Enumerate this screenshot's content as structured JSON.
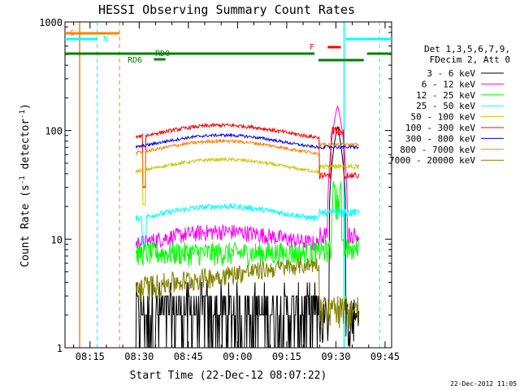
{
  "chart_data": {
    "type": "line",
    "title": "HESSI Observing Summary Count Rates",
    "xlabel": "Start Time (22-Dec-12 08:07:22)",
    "ylabel_main": "Count Rate (s",
    "ylabel_sup1": "-1",
    "ylabel_mid": " detector",
    "ylabel_sup2": "-1",
    "ylabel_end": ")",
    "yscale": "log",
    "ylim": [
      1,
      1000
    ],
    "xlim": [
      "08:07:22",
      "09:47:00"
    ],
    "x_ticks": [
      "08:15",
      "08:30",
      "08:45",
      "09:00",
      "09:15",
      "09:30",
      "09:45"
    ],
    "y_ticks": [
      "1",
      "10",
      "100",
      "1000"
    ],
    "legend_header": [
      "Det 1,3,5,6,7,9,",
      "FDecim 2, Att 0"
    ],
    "legend_position": "right",
    "footer_timestamp": "22-Dec-2012 11:05",
    "flags": {
      "S": "S",
      "N": "N",
      "RD0": "RD0",
      "RD6": "RD6",
      "F": "F"
    },
    "colors": {
      "S": "#ff8000",
      "N": "#00ffff",
      "RD": "#008000",
      "F": "#ff0000",
      "saa": "#ff8000",
      "night": "#00ffff"
    },
    "series": [
      {
        "name": "3 - 6 keV",
        "color": "#000000",
        "level": 1.5
      },
      {
        "name": "6 - 12 keV",
        "color": "#ff00ff",
        "level": 10
      },
      {
        "name": "12 - 25 keV",
        "color": "#00ff00",
        "level": 7.5
      },
      {
        "name": "25 - 50 keV",
        "color": "#00ffff",
        "level": 17
      },
      {
        "name": "50 - 100 keV",
        "color": "#c8c800",
        "level": 46
      },
      {
        "name": "100 - 300 keV",
        "color": "#ff0000",
        "level": 95
      },
      {
        "name": "300 - 800 keV",
        "color": "#0000ff",
        "level": 77
      },
      {
        "name": "800 - 7000 keV",
        "color": "#ff8000",
        "level": 68
      },
      {
        "name": "7000 - 20000 keV",
        "color": "#808000",
        "level": 4
      }
    ]
  }
}
